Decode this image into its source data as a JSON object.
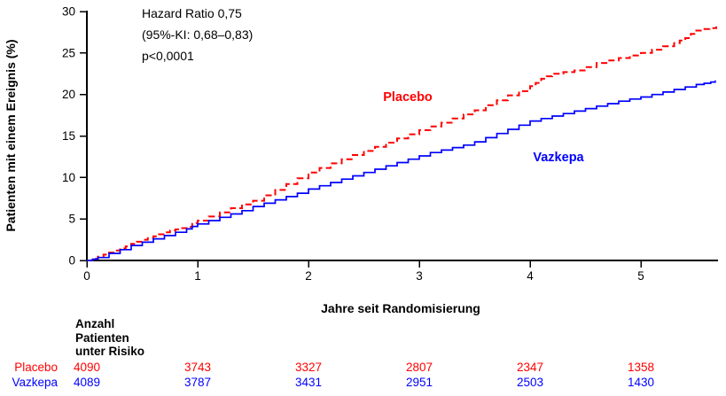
{
  "chart_data": {
    "type": "line",
    "subtype": "kaplan-meier-cumulative-incidence-step",
    "xlabel": "Jahre seit Randomisierung",
    "ylabel": "Patienten mit einem Ereignis (%)",
    "xlim": [
      0,
      5.7
    ],
    "ylim": [
      0,
      30
    ],
    "x_ticks": [
      0,
      1,
      2,
      3,
      4,
      5
    ],
    "y_ticks": [
      0,
      5,
      10,
      15,
      20,
      25,
      30
    ],
    "grid": false,
    "legend_position": "labels-on-curves",
    "annotation": {
      "lines": [
        "Hazard Ratio 0,75",
        "(95%-KI: 0,68–0,83)",
        "p<0,0001"
      ]
    },
    "axis_color": "#000000",
    "series": [
      {
        "name": "Placebo",
        "color": "#ff0000",
        "style": "dashed",
        "points": [
          [
            0,
            0
          ],
          [
            0.05,
            0.2
          ],
          [
            0.1,
            0.45
          ],
          [
            0.15,
            0.7
          ],
          [
            0.2,
            0.95
          ],
          [
            0.25,
            1.2
          ],
          [
            0.3,
            1.45
          ],
          [
            0.35,
            1.7
          ],
          [
            0.4,
            2.0
          ],
          [
            0.45,
            2.25
          ],
          [
            0.5,
            2.5
          ],
          [
            0.55,
            2.7
          ],
          [
            0.6,
            2.9
          ],
          [
            0.65,
            3.15
          ],
          [
            0.7,
            3.4
          ],
          [
            0.75,
            3.6
          ],
          [
            0.8,
            3.75
          ],
          [
            0.85,
            3.9
          ],
          [
            0.9,
            4.05
          ],
          [
            0.95,
            4.5
          ],
          [
            1.0,
            4.8
          ],
          [
            1.1,
            5.3
          ],
          [
            1.2,
            5.8
          ],
          [
            1.3,
            6.3
          ],
          [
            1.4,
            6.75
          ],
          [
            1.5,
            7.2
          ],
          [
            1.6,
            7.85
          ],
          [
            1.7,
            8.5
          ],
          [
            1.8,
            9.2
          ],
          [
            1.9,
            9.9
          ],
          [
            2.0,
            10.6
          ],
          [
            2.1,
            11.15
          ],
          [
            2.2,
            11.7
          ],
          [
            2.3,
            12.2
          ],
          [
            2.4,
            12.7
          ],
          [
            2.5,
            13.2
          ],
          [
            2.6,
            13.7
          ],
          [
            2.7,
            14.2
          ],
          [
            2.8,
            14.7
          ],
          [
            2.9,
            15.2
          ],
          [
            3.0,
            15.7
          ],
          [
            3.1,
            16.15
          ],
          [
            3.2,
            16.6
          ],
          [
            3.3,
            17.1
          ],
          [
            3.4,
            17.6
          ],
          [
            3.5,
            18.1
          ],
          [
            3.6,
            18.7
          ],
          [
            3.7,
            19.3
          ],
          [
            3.8,
            19.9
          ],
          [
            3.9,
            20.4
          ],
          [
            4.0,
            21.0
          ],
          [
            4.05,
            21.4
          ],
          [
            4.1,
            21.9
          ],
          [
            4.15,
            22.2
          ],
          [
            4.2,
            22.5
          ],
          [
            4.3,
            22.7
          ],
          [
            4.4,
            22.9
          ],
          [
            4.5,
            23.3
          ],
          [
            4.6,
            23.8
          ],
          [
            4.7,
            24.1
          ],
          [
            4.8,
            24.4
          ],
          [
            4.9,
            24.7
          ],
          [
            5.0,
            25.0
          ],
          [
            5.1,
            25.4
          ],
          [
            5.2,
            25.8
          ],
          [
            5.3,
            26.2
          ],
          [
            5.35,
            26.5
          ],
          [
            5.4,
            26.8
          ],
          [
            5.45,
            27.3
          ],
          [
            5.5,
            27.7
          ],
          [
            5.55,
            27.9
          ],
          [
            5.62,
            28.0
          ],
          [
            5.68,
            28.2
          ]
        ]
      },
      {
        "name": "Vazkepa",
        "color": "#0000ff",
        "style": "solid",
        "points": [
          [
            0,
            0
          ],
          [
            0.05,
            0.15
          ],
          [
            0.1,
            0.35
          ],
          [
            0.2,
            0.85
          ],
          [
            0.3,
            1.3
          ],
          [
            0.4,
            1.8
          ],
          [
            0.5,
            2.2
          ],
          [
            0.6,
            2.6
          ],
          [
            0.7,
            3.0
          ],
          [
            0.8,
            3.4
          ],
          [
            0.9,
            3.8
          ],
          [
            0.95,
            4.1
          ],
          [
            1.0,
            4.4
          ],
          [
            1.1,
            4.8
          ],
          [
            1.2,
            5.2
          ],
          [
            1.3,
            5.6
          ],
          [
            1.4,
            6.0
          ],
          [
            1.5,
            6.5
          ],
          [
            1.6,
            6.9
          ],
          [
            1.7,
            7.3
          ],
          [
            1.8,
            7.7
          ],
          [
            1.9,
            8.1
          ],
          [
            2.0,
            8.6
          ],
          [
            2.1,
            9.0
          ],
          [
            2.2,
            9.4
          ],
          [
            2.3,
            9.8
          ],
          [
            2.4,
            10.2
          ],
          [
            2.5,
            10.6
          ],
          [
            2.6,
            11.0
          ],
          [
            2.7,
            11.4
          ],
          [
            2.8,
            11.8
          ],
          [
            2.9,
            12.2
          ],
          [
            3.0,
            12.6
          ],
          [
            3.1,
            13.0
          ],
          [
            3.2,
            13.3
          ],
          [
            3.3,
            13.6
          ],
          [
            3.4,
            13.9
          ],
          [
            3.5,
            14.3
          ],
          [
            3.6,
            14.8
          ],
          [
            3.7,
            15.3
          ],
          [
            3.8,
            15.8
          ],
          [
            3.9,
            16.3
          ],
          [
            4.0,
            16.8
          ],
          [
            4.1,
            17.1
          ],
          [
            4.2,
            17.4
          ],
          [
            4.3,
            17.7
          ],
          [
            4.4,
            18.0
          ],
          [
            4.5,
            18.3
          ],
          [
            4.6,
            18.6
          ],
          [
            4.7,
            18.9
          ],
          [
            4.8,
            19.2
          ],
          [
            4.9,
            19.45
          ],
          [
            5.0,
            19.7
          ],
          [
            5.1,
            20.0
          ],
          [
            5.2,
            20.3
          ],
          [
            5.3,
            20.6
          ],
          [
            5.4,
            20.9
          ],
          [
            5.5,
            21.2
          ],
          [
            5.57,
            21.35
          ],
          [
            5.63,
            21.5
          ],
          [
            5.67,
            21.7
          ]
        ]
      }
    ],
    "risk_table": {
      "header": "Anzahl\nPatienten\nunter Risiko",
      "times": [
        0,
        1,
        2,
        3,
        4,
        5
      ],
      "rows": [
        {
          "name": "Placebo",
          "color": "#ff0000",
          "values": [
            "4090",
            "3743",
            "3327",
            "2807",
            "2347",
            "1358"
          ]
        },
        {
          "name": "Vazkepa",
          "color": "#0000ff",
          "values": [
            "4089",
            "3787",
            "3431",
            "2951",
            "2503",
            "1430"
          ]
        }
      ]
    }
  }
}
